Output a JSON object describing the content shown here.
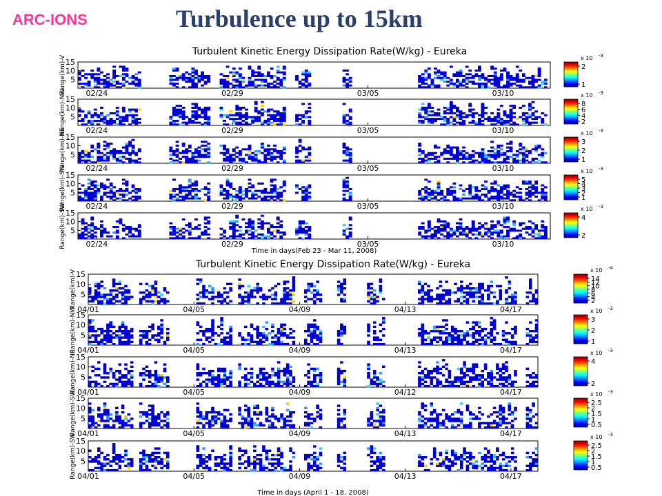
{
  "slide": {
    "brand": "ARC-IONS",
    "title": "Turbulence up to 15km"
  },
  "chart_data": [
    {
      "type": "heatmap",
      "title": "Turbulent Kinetic Energy Dissipation Rate(W/kg) - Eureka",
      "xlabel": "Time in days(Feb 23 - Mar 11, 2008)",
      "shared_x_ticks": [
        "02/24",
        "02/29",
        "03/05",
        "03/10"
      ],
      "colormap": "jet",
      "panels": [
        {
          "ylabel": "Range(km)-V",
          "y_ticks": [
            "15",
            "10",
            "5"
          ],
          "ylim": [
            0,
            15
          ],
          "colorbar_multiplier": "x 10",
          "colorbar_exponent": "-3",
          "colorbar_ticks": [
            "2",
            "1"
          ]
        },
        {
          "ylabel": "Range(km)-NW",
          "y_ticks": [
            "15",
            "10",
            "5"
          ],
          "ylim": [
            0,
            15
          ],
          "colorbar_multiplier": "x 10",
          "colorbar_exponent": "-3",
          "colorbar_ticks": [
            "8",
            "6",
            "4",
            "2"
          ]
        },
        {
          "ylabel": "Range(km)-NE",
          "y_ticks": [
            "15",
            "10",
            "5"
          ],
          "ylim": [
            0,
            15
          ],
          "colorbar_multiplier": "x 10",
          "colorbar_exponent": "-3",
          "colorbar_ticks": [
            "3",
            "2",
            "1"
          ]
        },
        {
          "ylabel": "Range(km)-SW",
          "y_ticks": [
            "15",
            "10",
            "5"
          ],
          "ylim": [
            0,
            15
          ],
          "colorbar_multiplier": "x 10",
          "colorbar_exponent": "-3",
          "colorbar_ticks": [
            "5",
            "4",
            "3",
            "2",
            "1"
          ]
        },
        {
          "ylabel": "Range(km)-SW",
          "y_ticks": [
            "15",
            "10",
            "5"
          ],
          "ylim": [
            0,
            15
          ],
          "colorbar_multiplier": "x 10",
          "colorbar_exponent": "-3",
          "colorbar_ticks": [
            "4",
            "2"
          ]
        }
      ]
    },
    {
      "type": "heatmap",
      "title": "Turbulent Kinetic Energy Dissipation Rate(W/kg) - Eureka",
      "xlabel": "Time in days (April 1 - 18, 2008)",
      "colormap": "jet",
      "panels": [
        {
          "ylabel": "Range(km)-V",
          "y_ticks": [
            "15",
            "10",
            "5"
          ],
          "ylim": [
            0,
            15
          ],
          "x_ticks": [
            "04/01",
            "04/05",
            "04/09",
            "04/13",
            "04/17"
          ],
          "colorbar_multiplier": "x 10",
          "colorbar_exponent": "-4",
          "colorbar_ticks": [
            "14",
            "12",
            "10",
            "8",
            "6",
            "4",
            "2"
          ]
        },
        {
          "ylabel": "Range(km)-NW",
          "y_ticks": [
            "15",
            "10",
            "5"
          ],
          "ylim": [
            0,
            15
          ],
          "x_ticks": [
            "04/01",
            "04/05",
            "04/09",
            "04/13",
            "04/17"
          ],
          "colorbar_multiplier": "x 10",
          "colorbar_exponent": "-3",
          "colorbar_ticks": [
            "3",
            "2",
            "1"
          ]
        },
        {
          "ylabel": "Range(km)-NE",
          "y_ticks": [
            "15",
            "10",
            "5"
          ],
          "ylim": [
            0,
            15
          ],
          "x_ticks": [
            "04/01",
            "04/05",
            "04/09",
            "04/12",
            "04/17"
          ],
          "colorbar_multiplier": "x 10",
          "colorbar_exponent": "-3",
          "colorbar_ticks": [
            "4",
            "2"
          ]
        },
        {
          "ylabel": "Range(km)-SW",
          "y_ticks": [
            "15",
            "10",
            "5"
          ],
          "ylim": [
            0,
            15
          ],
          "x_ticks": [
            "04/01",
            "04/05",
            "04/09",
            "04/13",
            "04/17"
          ],
          "colorbar_multiplier": "x 10",
          "colorbar_exponent": "-3",
          "colorbar_ticks": [
            "2.5",
            "2",
            "1.5",
            "1",
            "0.5"
          ]
        },
        {
          "ylabel": "Range(km)-SW",
          "y_ticks": [
            "15",
            "10",
            "5"
          ],
          "ylim": [
            0,
            15
          ],
          "x_ticks": [
            "04/01",
            "04/05",
            "04/09",
            "04/13",
            "04/17"
          ],
          "colorbar_multiplier": "x 10",
          "colorbar_exponent": "-3",
          "colorbar_ticks": [
            "2.5",
            "2",
            "1.5",
            "1",
            "0.5"
          ]
        }
      ]
    }
  ]
}
